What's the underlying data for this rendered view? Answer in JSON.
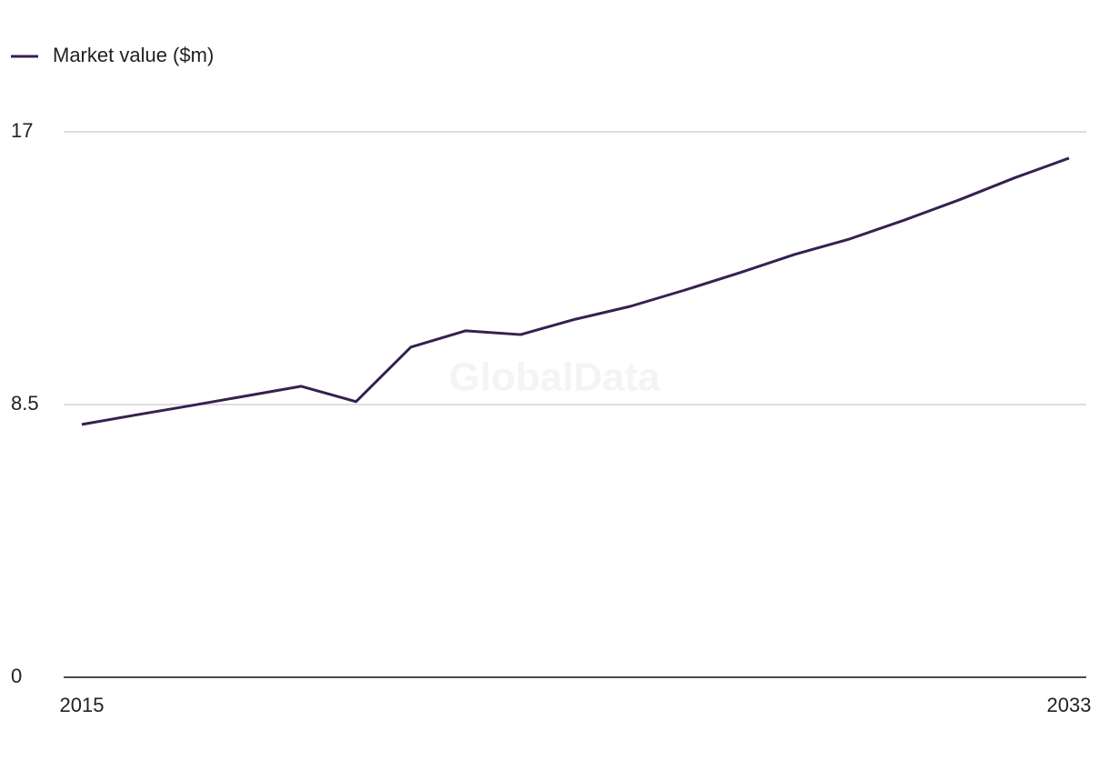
{
  "chart_data": {
    "type": "line",
    "watermark": "GlobalData",
    "x": [
      2015,
      2016,
      2017,
      2018,
      2019,
      2020,
      2021,
      2022,
      2023,
      2024,
      2025,
      2026,
      2027,
      2028,
      2029,
      2030,
      2031,
      2032,
      2033
    ],
    "series": [
      {
        "name": "Market value ($m)",
        "color": "#35214f",
        "values": [
          7.88,
          8.18,
          8.47,
          8.77,
          9.07,
          8.59,
          10.29,
          10.8,
          10.68,
          11.16,
          11.56,
          12.07,
          12.61,
          13.18,
          13.66,
          14.25,
          14.88,
          15.56,
          16.18
        ]
      }
    ],
    "xlim": [
      2015,
      2033
    ],
    "xticks": [
      2015,
      2033
    ],
    "ylim": [
      0,
      17
    ],
    "yticks": [
      0,
      8.5,
      17
    ],
    "grid": true,
    "legend": "top-left"
  }
}
